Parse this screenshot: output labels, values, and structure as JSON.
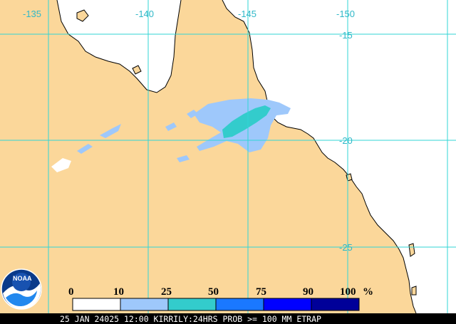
{
  "map": {
    "longitudes": [
      "-135",
      "-140",
      "-145",
      "-150"
    ],
    "latitudes": [
      "-15",
      "-20",
      "-25"
    ],
    "land_color": "#fbd79a",
    "ocean_color": "#ffffff",
    "grid_color": "#30d6d6",
    "coast_color": "#000000"
  },
  "legend": {
    "ticks": [
      "0",
      "10",
      "25",
      "50",
      "75",
      "90",
      "100"
    ],
    "unit": "%",
    "bins": [
      {
        "range": "0-10",
        "color": "#ffffff"
      },
      {
        "range": "10-25",
        "color": "#9ec8fb"
      },
      {
        "range": "25-50",
        "color": "#33cccc"
      },
      {
        "range": "50-75",
        "color": "#1a78ff"
      },
      {
        "range": "75-90",
        "color": "#0000ff"
      },
      {
        "range": "90-100",
        "color": "#000099"
      }
    ]
  },
  "logo": {
    "text": "NOAA"
  },
  "footer": {
    "caption": "25 JAN 24025 12:00 KIRRILY:24HRS PROB >= 100 MM ETRAP"
  }
}
